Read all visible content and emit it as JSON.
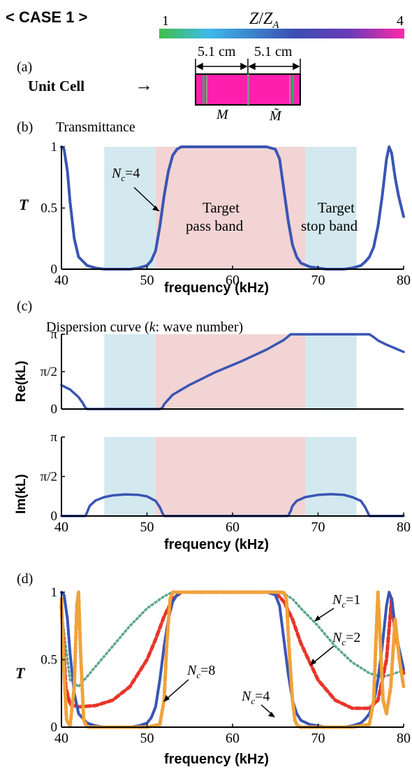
{
  "header": {
    "case_label": "< CASE 1 >",
    "colorbar": {
      "label": "Z/Z_A",
      "min_label": "1",
      "max_label": "4",
      "colors": [
        "#3fbf4a",
        "#3fb9ea",
        "#3a4fb0",
        "#6b3ab8",
        "#ff2aa8"
      ]
    }
  },
  "panel_a": {
    "tag": "(a)",
    "unit_cell_label": "Unit Cell",
    "arrow": "→",
    "dim_left": "5.1 cm",
    "dim_right": "5.1 cm",
    "cell_left_label": "M",
    "cell_right_label": "M̃",
    "cell_color": "#ff1fae",
    "insert_color": "#2fae5a"
  },
  "panel_b": {
    "tag": "(b)",
    "title": "Transmittance",
    "ylabel": "T",
    "xlabel": "frequency (kHz)",
    "annotation_nc": "N_c=4",
    "pass_band_label": [
      "Target",
      "pass band"
    ],
    "stop_band_label": [
      "Target",
      "stop band"
    ]
  },
  "panel_c": {
    "tag": "(c)",
    "title": "Dispersion curve (k: wave number)",
    "ylabel_re": "Re(kL)",
    "ylabel_im": "Im(kL)",
    "xlabel": "frequency (kHz)"
  },
  "panel_d": {
    "tag": "(d)",
    "ylabel": "T",
    "xlabel": "frequency (kHz)",
    "annotations": [
      "N_c=1",
      "N_c=2",
      "N_c=4",
      "N_c=8"
    ]
  },
  "colors": {
    "pass_band": "#f2d4d4",
    "stop_band": "#d3e9ef",
    "nc4": "#3a55b4",
    "nc1": "#5aa88a",
    "nc2": "#e8352a",
    "nc8": "#f0a23a"
  },
  "chart_data": [
    {
      "type": "line",
      "id": "transmittance",
      "title": "Transmittance",
      "xlabel": "frequency (kHz)",
      "ylabel": "T",
      "xlim": [
        40,
        80
      ],
      "ylim": [
        0,
        1
      ],
      "xticks": [
        40,
        50,
        60,
        70,
        80
      ],
      "yticks": [
        0,
        0.5,
        1
      ],
      "bands": [
        {
          "type": "stop",
          "from": 45,
          "to": 51
        },
        {
          "type": "pass",
          "from": 51,
          "to": 68.5
        },
        {
          "type": "stop",
          "from": 68.5,
          "to": 74.5
        }
      ],
      "series": [
        {
          "name": "N_c=4",
          "x": [
            40,
            40.3,
            40.7,
            41,
            41.5,
            42,
            43,
            44,
            45,
            46,
            47,
            48,
            49,
            50,
            50.5,
            51,
            51.5,
            52,
            52.5,
            53,
            53.5,
            54,
            55,
            58,
            62,
            64,
            65,
            65.5,
            66,
            66.5,
            67,
            67.5,
            68,
            69,
            70,
            71,
            72,
            73,
            74,
            75,
            75.5,
            76,
            76.5,
            77,
            77.5,
            78,
            78.3,
            78.6,
            79,
            79.4,
            80
          ],
          "y": [
            1.0,
            0.98,
            0.8,
            0.55,
            0.25,
            0.1,
            0.03,
            0.01,
            0.0,
            0.0,
            0.0,
            0.0,
            0.01,
            0.03,
            0.07,
            0.15,
            0.35,
            0.6,
            0.8,
            0.93,
            0.98,
            1.0,
            1.0,
            1.0,
            1.0,
            1.0,
            0.98,
            0.9,
            0.65,
            0.4,
            0.2,
            0.1,
            0.05,
            0.02,
            0.01,
            0.0,
            0.0,
            0.0,
            0.01,
            0.03,
            0.06,
            0.1,
            0.18,
            0.35,
            0.6,
            0.9,
            1.0,
            0.95,
            0.75,
            0.6,
            0.43
          ]
        }
      ]
    },
    {
      "type": "line",
      "id": "re_kl",
      "xlabel": "",
      "ylabel": "Re(kL)",
      "xlim": [
        40,
        80
      ],
      "ylim": [
        0,
        3.14159
      ],
      "xticks": [
        40,
        50,
        60,
        70,
        80
      ],
      "yticks": [
        "0",
        "π/2",
        "π"
      ],
      "bands": [
        {
          "type": "stop",
          "from": 45,
          "to": 51
        },
        {
          "type": "pass",
          "from": 51,
          "to": 68.5
        },
        {
          "type": "stop",
          "from": 68.5,
          "to": 74.5
        }
      ],
      "series": [
        {
          "name": "",
          "x": [
            40,
            41,
            42,
            42.5,
            42.8,
            43,
            50,
            51.5,
            51.8,
            52,
            53,
            55,
            58,
            61,
            64,
            66,
            66.8,
            67,
            76,
            76.5,
            77,
            78,
            79,
            80
          ],
          "y": [
            1.0,
            0.82,
            0.5,
            0.25,
            0.05,
            0,
            0,
            0,
            0.05,
            0.2,
            0.6,
            1.02,
            1.55,
            2.0,
            2.5,
            2.9,
            3.14,
            3.14,
            3.14,
            3.02,
            2.88,
            2.7,
            2.55,
            2.4
          ]
        }
      ]
    },
    {
      "type": "line",
      "id": "im_kl",
      "xlabel": "frequency (kHz)",
      "ylabel": "Im(kL)",
      "xlim": [
        40,
        80
      ],
      "ylim": [
        0,
        3.14159
      ],
      "xticks": [
        40,
        50,
        60,
        70,
        80
      ],
      "yticks": [
        "0",
        "π/2",
        "π"
      ],
      "bands": [
        {
          "type": "stop",
          "from": 45,
          "to": 51
        },
        {
          "type": "pass",
          "from": 51,
          "to": 68.5
        },
        {
          "type": "stop",
          "from": 68.5,
          "to": 74.5
        }
      ],
      "series": [
        {
          "name": "",
          "x": [
            40,
            42.8,
            43,
            43.3,
            44,
            45,
            46,
            47.5,
            49,
            50,
            51,
            51.5,
            51.8,
            52,
            66.5,
            66.8,
            67,
            67.5,
            68.5,
            70,
            71.5,
            73,
            74,
            75,
            75.5,
            75.8,
            76,
            80
          ],
          "y": [
            0,
            0,
            0.15,
            0.4,
            0.62,
            0.75,
            0.82,
            0.86,
            0.84,
            0.78,
            0.6,
            0.35,
            0.12,
            0,
            0,
            0.2,
            0.4,
            0.6,
            0.75,
            0.84,
            0.87,
            0.84,
            0.75,
            0.6,
            0.35,
            0.15,
            0,
            0
          ]
        }
      ]
    },
    {
      "type": "line",
      "id": "transmittance_nc",
      "xlabel": "frequency (kHz)",
      "ylabel": "T",
      "xlim": [
        40,
        80
      ],
      "ylim": [
        0,
        1
      ],
      "xticks": [
        40,
        50,
        60,
        70,
        80
      ],
      "yticks": [
        0,
        0.5,
        1
      ],
      "series": [
        {
          "name": "N_c=1",
          "style": "dotted",
          "x": [
            40,
            41,
            42,
            44,
            46,
            48,
            50,
            52,
            53,
            54,
            55,
            58,
            62,
            65,
            66,
            67,
            68,
            70,
            72,
            74,
            76,
            77,
            78,
            79,
            80
          ],
          "y": [
            0.85,
            0.35,
            0.3,
            0.45,
            0.6,
            0.75,
            0.88,
            0.97,
            1.0,
            1.0,
            1.0,
            1.0,
            1.0,
            1.0,
            0.99,
            0.95,
            0.88,
            0.75,
            0.6,
            0.48,
            0.4,
            0.38,
            0.38,
            0.4,
            0.42
          ]
        },
        {
          "name": "N_c=2",
          "style": "dashed",
          "x": [
            40,
            40.5,
            41,
            42,
            44,
            46,
            48,
            50,
            51,
            52,
            53,
            54,
            55,
            58,
            62,
            65,
            66,
            67,
            68,
            70,
            72,
            74,
            76,
            77,
            78,
            78.6,
            79,
            80
          ],
          "y": [
            0.9,
            0.3,
            0.17,
            0.15,
            0.16,
            0.2,
            0.3,
            0.5,
            0.65,
            0.82,
            0.95,
            1.0,
            1.0,
            1.0,
            1.0,
            1.0,
            0.93,
            0.8,
            0.62,
            0.35,
            0.2,
            0.14,
            0.14,
            0.2,
            0.5,
            0.95,
            0.7,
            0.4
          ]
        },
        {
          "name": "N_c=4",
          "style": "solid",
          "x": [
            40,
            40.3,
            40.7,
            41,
            41.5,
            42,
            43,
            44,
            45,
            46,
            47,
            48,
            49,
            50,
            50.5,
            51,
            51.5,
            52,
            52.5,
            53,
            53.5,
            54,
            55,
            58,
            62,
            64,
            65,
            65.5,
            66,
            66.5,
            67,
            67.5,
            68,
            69,
            70,
            71,
            72,
            73,
            74,
            75,
            75.5,
            76,
            76.5,
            77,
            77.5,
            78,
            78.3,
            78.6,
            79,
            79.4,
            80
          ],
          "y": [
            1.0,
            0.98,
            0.8,
            0.55,
            0.25,
            0.1,
            0.03,
            0.01,
            0.0,
            0.0,
            0.0,
            0.0,
            0.01,
            0.03,
            0.07,
            0.15,
            0.35,
            0.6,
            0.8,
            0.93,
            0.98,
            1.0,
            1.0,
            1.0,
            1.0,
            1.0,
            0.98,
            0.9,
            0.65,
            0.4,
            0.2,
            0.1,
            0.05,
            0.02,
            0.01,
            0.0,
            0.0,
            0.0,
            0.01,
            0.03,
            0.06,
            0.1,
            0.18,
            0.35,
            0.6,
            0.9,
            1.0,
            0.95,
            0.75,
            0.6,
            0.43
          ]
        },
        {
          "name": "N_c=8",
          "style": "dashdot",
          "x": [
            40,
            40.3,
            40.6,
            41,
            41.5,
            41.8,
            42,
            42.2,
            42.6,
            43,
            46,
            50,
            51.5,
            52,
            52.3,
            52.7,
            53,
            54,
            58,
            62,
            66,
            66.3,
            66.6,
            67,
            67.3,
            67.6,
            68,
            70,
            74,
            76,
            76.5,
            76.8,
            77,
            77.3,
            77.6,
            78,
            78.5,
            79,
            79.5,
            80
          ],
          "y": [
            0.95,
            0.4,
            0.05,
            0.01,
            0.3,
            0.9,
            1.0,
            0.6,
            0.05,
            0.0,
            0.0,
            0.0,
            0.02,
            0.2,
            0.6,
            0.95,
            1.0,
            1.0,
            1.0,
            1.0,
            1.0,
            0.95,
            0.6,
            0.2,
            0.05,
            0.01,
            0.0,
            0.0,
            0.0,
            0.02,
            0.2,
            0.7,
            1.0,
            0.6,
            0.2,
            0.1,
            0.3,
            0.8,
            0.5,
            0.3
          ]
        }
      ]
    }
  ]
}
